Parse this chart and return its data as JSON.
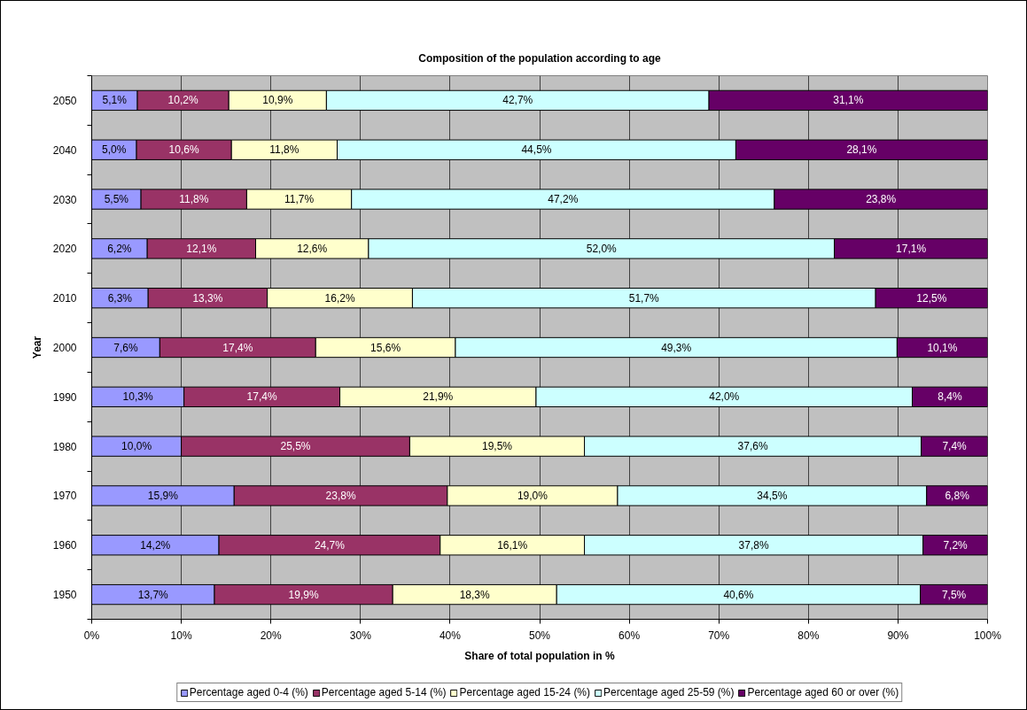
{
  "chart_data": {
    "type": "bar",
    "orientation": "horizontal",
    "stacked": true,
    "title": "Composition of the population according to age",
    "xlabel": "Share of total population in %",
    "ylabel": "Year",
    "categories": [
      "2050",
      "2040",
      "2030",
      "2020",
      "2010",
      "2000",
      "1990",
      "1980",
      "1970",
      "1960",
      "1950"
    ],
    "xlim": [
      0,
      100
    ],
    "xticks": [
      {
        "value": 0,
        "label": "0%"
      },
      {
        "value": 10,
        "label": "10%"
      },
      {
        "value": 20,
        "label": "20%"
      },
      {
        "value": 30,
        "label": "30%"
      },
      {
        "value": 40,
        "label": "40%"
      },
      {
        "value": 50,
        "label": "50%"
      },
      {
        "value": 60,
        "label": "60%"
      },
      {
        "value": 70,
        "label": "70%"
      },
      {
        "value": 80,
        "label": "80%"
      },
      {
        "value": 90,
        "label": "90%"
      },
      {
        "value": 100,
        "label": "100%"
      }
    ],
    "grid": "x",
    "legend": "bottom",
    "series": [
      {
        "name": "Percentage aged 0-4 (%)",
        "color": "#9999ff",
        "values": [
          5.1,
          5.0,
          5.5,
          6.2,
          6.3,
          7.6,
          10.3,
          10.0,
          15.9,
          14.2,
          13.7
        ],
        "value_labels": [
          "5,1%",
          "5,0%",
          "5,5%",
          "6,2%",
          "6,3%",
          "7,6%",
          "10,3%",
          "10,0%",
          "15,9%",
          "14,2%",
          "13,7%"
        ]
      },
      {
        "name": "Percentage aged 5-14 (%)",
        "color": "#993366",
        "values": [
          10.2,
          10.6,
          11.8,
          12.1,
          13.3,
          17.4,
          17.4,
          25.5,
          23.8,
          24.7,
          19.9
        ],
        "value_labels": [
          "10,2%",
          "10,6%",
          "11,8%",
          "12,1%",
          "13,3%",
          "17,4%",
          "17,4%",
          "25,5%",
          "23,8%",
          "24,7%",
          "19,9%"
        ]
      },
      {
        "name": "Percentage aged 15-24 (%)",
        "color": "#ffffcc",
        "values": [
          10.9,
          11.8,
          11.7,
          12.6,
          16.2,
          15.6,
          21.9,
          19.5,
          19.0,
          16.1,
          18.3
        ],
        "value_labels": [
          "10,9%",
          "11,8%",
          "11,7%",
          "12,6%",
          "16,2%",
          "15,6%",
          "21,9%",
          "19,5%",
          "19,0%",
          "16,1%",
          "18,3%"
        ]
      },
      {
        "name": "Percentage aged 25-59 (%)",
        "color": "#ccffff",
        "values": [
          42.7,
          44.5,
          47.2,
          52.0,
          51.7,
          49.3,
          42.0,
          37.6,
          34.5,
          37.8,
          40.6
        ],
        "value_labels": [
          "42,7%",
          "44,5%",
          "47,2%",
          "52,0%",
          "51,7%",
          "49,3%",
          "42,0%",
          "37,6%",
          "34,5%",
          "37,8%",
          "40,6%"
        ]
      },
      {
        "name": "Percentage aged 60 or over (%)",
        "color": "#660066",
        "values": [
          31.1,
          28.1,
          23.8,
          17.1,
          12.5,
          10.1,
          8.4,
          7.4,
          6.8,
          7.2,
          7.5
        ],
        "value_labels": [
          "31,1%",
          "28,1%",
          "23,8%",
          "17,1%",
          "12,5%",
          "10,1%",
          "8,4%",
          "7,4%",
          "6,8%",
          "7,2%",
          "7,5%"
        ]
      }
    ]
  }
}
